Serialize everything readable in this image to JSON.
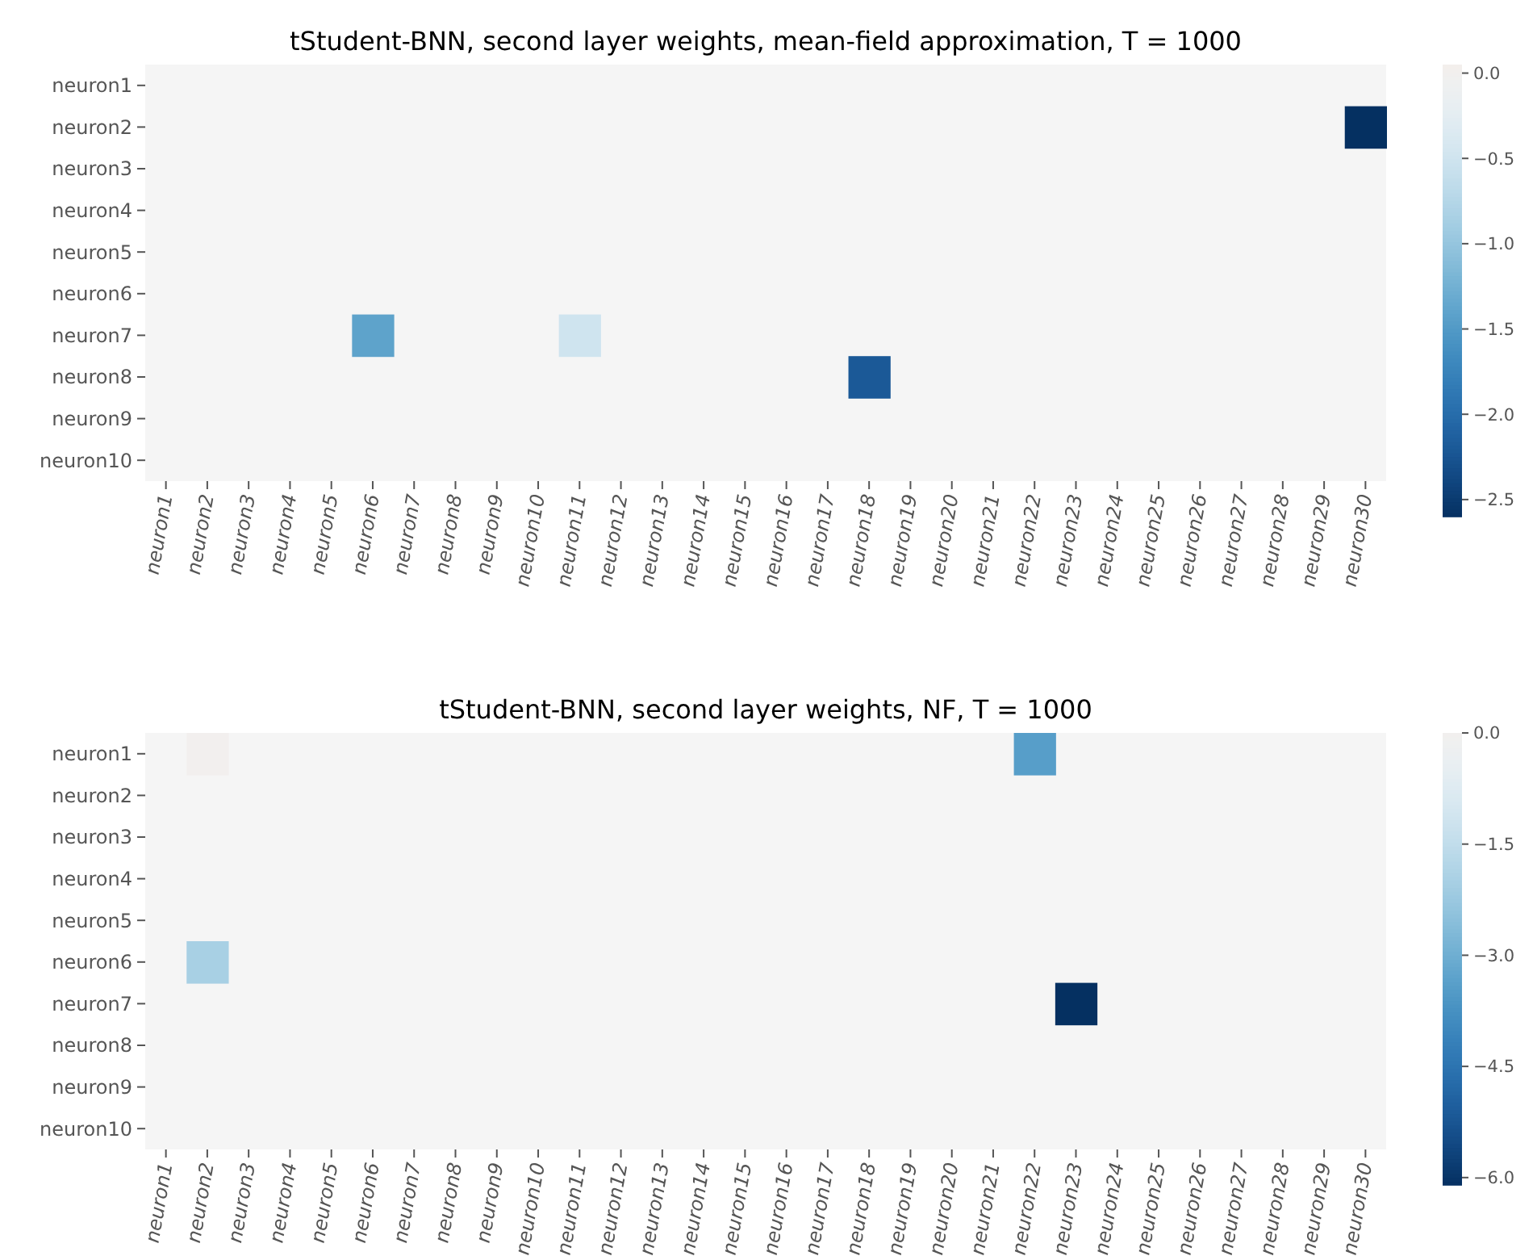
{
  "chart_data": [
    {
      "type": "heatmap",
      "title": "tStudent-BNN, second layer weights, mean-field approximation, T = 1000",
      "categories": [
        "neuron1",
        "neuron2",
        "neuron3",
        "neuron4",
        "neuron5",
        "neuron6",
        "neuron7",
        "neuron8",
        "neuron9",
        "neuron10",
        "neuron11",
        "neuron12",
        "neuron13",
        "neuron14",
        "neuron15",
        "neuron16",
        "neuron17",
        "neuron18",
        "neuron19",
        "neuron20",
        "neuron21",
        "neuron22",
        "neuron23",
        "neuron24",
        "neuron25",
        "neuron26",
        "neuron27",
        "neuron28",
        "neuron29",
        "neuron30"
      ],
      "y_categories": [
        "neuron1",
        "neuron2",
        "neuron3",
        "neuron4",
        "neuron5",
        "neuron6",
        "neuron7",
        "neuron8",
        "neuron9",
        "neuron10"
      ],
      "cells": [
        [
          null,
          null,
          null,
          null,
          null,
          null,
          null,
          null,
          null,
          null,
          null,
          null,
          null,
          null,
          null,
          null,
          null,
          null,
          null,
          null,
          null,
          null,
          null,
          null,
          null,
          null,
          null,
          null,
          null,
          null
        ],
        [
          null,
          null,
          null,
          null,
          null,
          null,
          null,
          null,
          null,
          null,
          null,
          null,
          null,
          null,
          null,
          null,
          null,
          null,
          null,
          null,
          null,
          null,
          null,
          null,
          null,
          null,
          null,
          null,
          null,
          -2.6
        ],
        [
          null,
          null,
          null,
          null,
          null,
          null,
          null,
          null,
          null,
          null,
          null,
          null,
          null,
          null,
          null,
          null,
          null,
          null,
          null,
          null,
          null,
          null,
          null,
          null,
          null,
          null,
          null,
          null,
          null,
          null
        ],
        [
          null,
          null,
          null,
          null,
          null,
          null,
          null,
          null,
          null,
          null,
          null,
          null,
          null,
          null,
          null,
          null,
          null,
          null,
          null,
          null,
          null,
          null,
          null,
          null,
          null,
          null,
          null,
          null,
          null,
          null
        ],
        [
          null,
          null,
          null,
          null,
          null,
          null,
          null,
          null,
          null,
          null,
          null,
          null,
          null,
          null,
          null,
          null,
          null,
          null,
          null,
          null,
          null,
          null,
          null,
          null,
          null,
          null,
          null,
          null,
          null,
          null
        ],
        [
          null,
          null,
          null,
          null,
          null,
          null,
          null,
          null,
          null,
          null,
          null,
          null,
          null,
          null,
          null,
          null,
          null,
          null,
          null,
          null,
          null,
          null,
          null,
          null,
          null,
          null,
          null,
          null,
          null,
          null
        ],
        [
          null,
          null,
          null,
          null,
          null,
          -1.4,
          null,
          null,
          null,
          null,
          -0.5,
          null,
          null,
          null,
          null,
          null,
          null,
          null,
          null,
          null,
          null,
          null,
          null,
          null,
          null,
          null,
          null,
          null,
          null,
          null
        ],
        [
          null,
          null,
          null,
          null,
          null,
          null,
          null,
          null,
          null,
          null,
          null,
          null,
          null,
          null,
          null,
          null,
          null,
          -2.2,
          null,
          null,
          null,
          null,
          null,
          null,
          null,
          null,
          null,
          null,
          null,
          null
        ],
        [
          null,
          null,
          null,
          null,
          null,
          null,
          null,
          null,
          null,
          null,
          null,
          null,
          null,
          null,
          null,
          null,
          null,
          null,
          null,
          null,
          null,
          null,
          null,
          null,
          null,
          null,
          null,
          null,
          null,
          null
        ],
        [
          null,
          null,
          null,
          null,
          null,
          null,
          null,
          null,
          null,
          null,
          null,
          null,
          null,
          null,
          null,
          null,
          null,
          null,
          null,
          null,
          null,
          null,
          null,
          null,
          null,
          null,
          null,
          null,
          null,
          null
        ]
      ],
      "clim": [
        -2.6,
        0.05
      ],
      "cticks": [
        {
          "value": 0,
          "label": "0.0"
        },
        {
          "value": -0.5,
          "label": "−0.5"
        },
        {
          "value": -1,
          "label": "−1.0"
        },
        {
          "value": -1.5,
          "label": "−1.5"
        },
        {
          "value": -2,
          "label": "−2.0"
        },
        {
          "value": -2.5,
          "label": "−2.5"
        }
      ]
    },
    {
      "type": "heatmap",
      "title": "tStudent-BNN, second layer weights, NF, T = 1000",
      "categories": [
        "neuron1",
        "neuron2",
        "neuron3",
        "neuron4",
        "neuron5",
        "neuron6",
        "neuron7",
        "neuron8",
        "neuron9",
        "neuron10",
        "neuron11",
        "neuron12",
        "neuron13",
        "neuron14",
        "neuron15",
        "neuron16",
        "neuron17",
        "neuron18",
        "neuron19",
        "neuron20",
        "neuron21",
        "neuron22",
        "neuron23",
        "neuron24",
        "neuron25",
        "neuron26",
        "neuron27",
        "neuron28",
        "neuron29",
        "neuron30"
      ],
      "y_categories": [
        "neuron1",
        "neuron2",
        "neuron3",
        "neuron4",
        "neuron5",
        "neuron6",
        "neuron7",
        "neuron8",
        "neuron9",
        "neuron10"
      ],
      "cells": [
        [
          null,
          0.0,
          null,
          null,
          null,
          null,
          null,
          null,
          null,
          null,
          null,
          null,
          null,
          null,
          null,
          null,
          null,
          null,
          null,
          null,
          null,
          -3.4,
          null,
          null,
          null,
          null,
          null,
          null,
          null,
          null
        ],
        [
          null,
          null,
          null,
          null,
          null,
          null,
          null,
          null,
          null,
          null,
          null,
          null,
          null,
          null,
          null,
          null,
          null,
          null,
          null,
          null,
          null,
          null,
          null,
          null,
          null,
          null,
          null,
          null,
          null,
          null
        ],
        [
          null,
          null,
          null,
          null,
          null,
          null,
          null,
          null,
          null,
          null,
          null,
          null,
          null,
          null,
          null,
          null,
          null,
          null,
          null,
          null,
          null,
          null,
          null,
          null,
          null,
          null,
          null,
          null,
          null,
          null
        ],
        [
          null,
          null,
          null,
          null,
          null,
          null,
          null,
          null,
          null,
          null,
          null,
          null,
          null,
          null,
          null,
          null,
          null,
          null,
          null,
          null,
          null,
          null,
          null,
          null,
          null,
          null,
          null,
          null,
          null,
          null
        ],
        [
          null,
          null,
          null,
          null,
          null,
          null,
          null,
          null,
          null,
          null,
          null,
          null,
          null,
          null,
          null,
          null,
          null,
          null,
          null,
          null,
          null,
          null,
          null,
          null,
          null,
          null,
          null,
          null,
          null,
          null
        ],
        [
          null,
          -2.0,
          null,
          null,
          null,
          null,
          null,
          null,
          null,
          null,
          null,
          null,
          null,
          null,
          null,
          null,
          null,
          null,
          null,
          null,
          null,
          null,
          null,
          null,
          null,
          null,
          null,
          null,
          null,
          null
        ],
        [
          null,
          null,
          null,
          null,
          null,
          null,
          null,
          null,
          null,
          null,
          null,
          null,
          null,
          null,
          null,
          null,
          null,
          null,
          null,
          null,
          null,
          null,
          -6.1,
          null,
          null,
          null,
          null,
          null,
          null,
          null
        ],
        [
          null,
          null,
          null,
          null,
          null,
          null,
          null,
          null,
          null,
          null,
          null,
          null,
          null,
          null,
          null,
          null,
          null,
          null,
          null,
          null,
          null,
          null,
          null,
          null,
          null,
          null,
          null,
          null,
          null,
          null
        ],
        [
          null,
          null,
          null,
          null,
          null,
          null,
          null,
          null,
          null,
          null,
          null,
          null,
          null,
          null,
          null,
          null,
          null,
          null,
          null,
          null,
          null,
          null,
          null,
          null,
          null,
          null,
          null,
          null,
          null,
          null
        ],
        [
          null,
          null,
          null,
          null,
          null,
          null,
          null,
          null,
          null,
          null,
          null,
          null,
          null,
          null,
          null,
          null,
          null,
          null,
          null,
          null,
          null,
          null,
          null,
          null,
          null,
          null,
          null,
          null,
          null,
          null
        ]
      ],
      "clim": [
        -6.1,
        0.0
      ],
      "cticks": [
        {
          "value": 0,
          "label": "0.0"
        },
        {
          "value": -1.5,
          "label": "−1.5"
        },
        {
          "value": -3,
          "label": "−3.0"
        },
        {
          "value": -4.5,
          "label": "−4.5"
        },
        {
          "value": -6,
          "label": "−6.0"
        }
      ]
    }
  ]
}
